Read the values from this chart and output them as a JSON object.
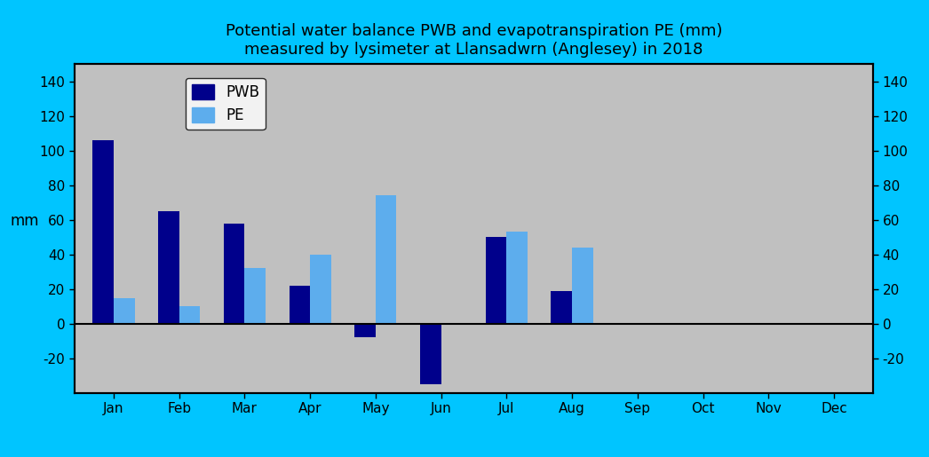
{
  "title_line1": "Potential water balance PWB and evapotranspiration PE (mm)",
  "title_line2": "measured by lysimeter at Llansadwrn (Anglesey) in 2018",
  "months": [
    "Jan",
    "Feb",
    "Mar",
    "Apr",
    "May",
    "Jun",
    "Jul",
    "Aug",
    "Sep",
    "Oct",
    "Nov",
    "Dec"
  ],
  "PWB": [
    106,
    65,
    58,
    22,
    -8,
    -35,
    50,
    19,
    0,
    0,
    0,
    0
  ],
  "PE": [
    15,
    10,
    32,
    40,
    74,
    0,
    53,
    44,
    0,
    0,
    0,
    0
  ],
  "pwb_color": "#00008B",
  "pe_color": "#5DADED",
  "bg_color": "#C0C0C0",
  "outer_bg": "#00C5FF",
  "ylabel": "mm",
  "ylim": [
    -40,
    150
  ],
  "yticks": [
    -20,
    0,
    20,
    40,
    60,
    80,
    100,
    120,
    140
  ],
  "bar_width": 0.32,
  "legend_pwb": "PWB",
  "legend_pe": "PE",
  "title_fontsize": 13,
  "axis_fontsize": 12,
  "tick_fontsize": 11,
  "legend_fontsize": 12
}
